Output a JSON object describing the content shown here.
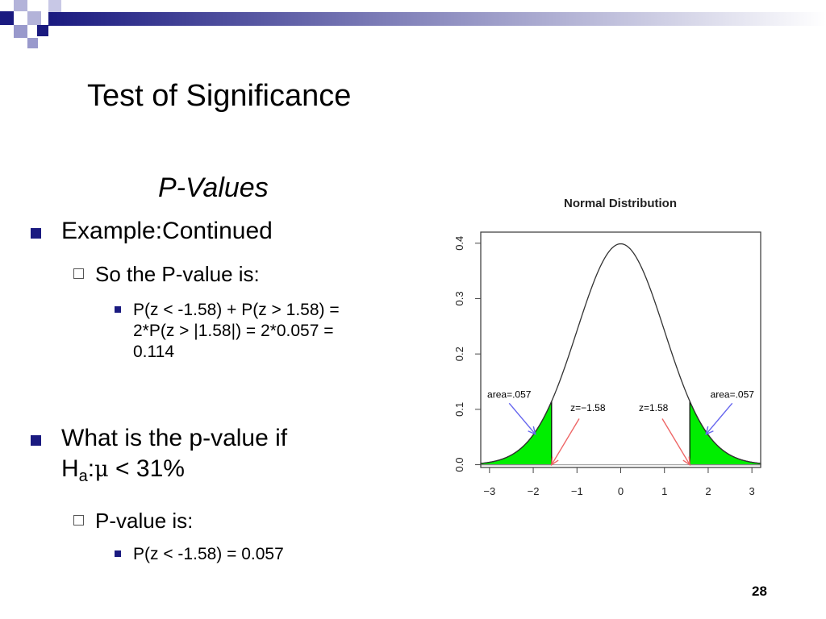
{
  "slide": {
    "title": "Test of Significance",
    "subtitle": "P-Values",
    "page_number": "28"
  },
  "bullets": {
    "b1": "Example:Continued",
    "b1_sub": "So the P-value is:",
    "b1_sub_line1": "P(z < -1.58) + P(z > 1.58) =",
    "b1_sub_line2": "2*P(z > |1.58|) = 2*0.057 =",
    "b1_sub_line3": "0.114",
    "b2_prefix": "What is the p-value if",
    "b2_h": "H",
    "b2_sub": "a",
    "b2_colon": ":",
    "b2_mu": "μ",
    "b2_rest": " < 31%",
    "b2_sub1": "P-value is:",
    "b2_sub1_line": "P(z < -1.58) = 0.057"
  },
  "chart_data": {
    "type": "area",
    "title": "Normal Distribution",
    "xlim": [
      -3.2,
      3.2
    ],
    "ylim": [
      -0.005,
      0.42
    ],
    "x_ticks": [
      -3,
      -2,
      -1,
      0,
      1,
      2,
      3
    ],
    "x_tick_labels": [
      "−3",
      "−2",
      "−1",
      "0",
      "1",
      "2",
      "3"
    ],
    "y_ticks": [
      0.0,
      0.1,
      0.2,
      0.3,
      0.4
    ],
    "y_tick_labels": [
      "0.0",
      "0.1",
      "0.2",
      "0.3",
      "0.4"
    ],
    "curve": "standard normal density, mean 0, sd 1",
    "shaded_regions": [
      {
        "from": -3.2,
        "to": -1.58,
        "area": 0.057
      },
      {
        "from": 1.58,
        "to": 3.2,
        "area": 0.057
      }
    ],
    "fill_color": "#00ee00",
    "annotations": [
      {
        "text": "area=.057",
        "x": -2.55,
        "y": 0.121
      },
      {
        "text": "area=.057",
        "x": 2.55,
        "y": 0.121
      },
      {
        "text": "z=−1.58",
        "x": -0.75,
        "y": 0.097
      },
      {
        "text": "z=1.58",
        "x": 0.75,
        "y": 0.097
      }
    ],
    "arrow_colors": {
      "area": "#6666ee",
      "z": "#ee6666"
    }
  }
}
